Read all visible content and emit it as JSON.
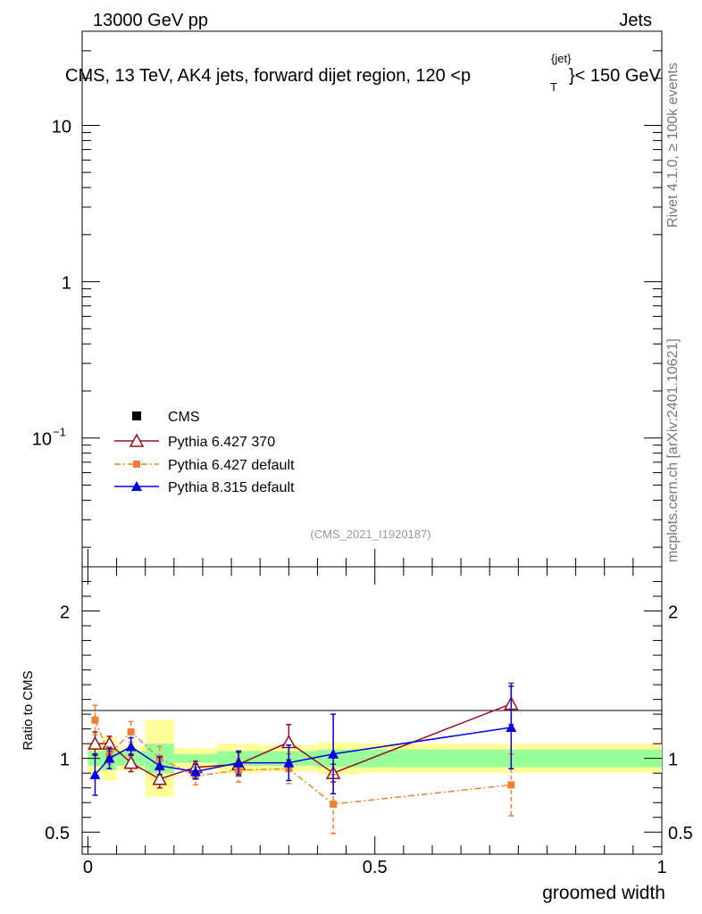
{
  "header": {
    "energy": "13000 GeV pp",
    "category": "Jets",
    "title_main": "CMS, 13 TeV, AK4 jets, forward dijet region, 120 <p",
    "title_sub": "T",
    "title_sup": "{jet}",
    "title_tail": "}< 150 GeV"
  },
  "side_labels": {
    "rivet": "Rivet 4.1.0, ≥ 100k events",
    "mcplots": "mcplots.cern.ch [arXiv:2401.10621]"
  },
  "analysis_tag": "(CMS_2021_I1920187)",
  "legend": [
    {
      "label": "CMS",
      "color": "#000000",
      "marker": "square-filled",
      "line": "none"
    },
    {
      "label": "Pythia 6.427 370",
      "color": "#990e1e",
      "marker": "triangle-open",
      "line": "solid"
    },
    {
      "label": "Pythia 6.427 default",
      "color": "#f08030",
      "marker": "square-filled",
      "line": "dashdot"
    },
    {
      "label": "Pythia 8.315 default",
      "color": "#0000dd",
      "marker": "triangle-filled",
      "line": "solid"
    }
  ],
  "chart_data": [
    {
      "type": "line",
      "panel": "main",
      "yscale": "log",
      "ylim": [
        0.015,
        40
      ],
      "xlim": [
        -0.01,
        1.0
      ],
      "y_ticks": [
        {
          "value": 10,
          "label": "10"
        },
        {
          "value": 1,
          "label": "1"
        },
        {
          "value": 0.1,
          "label": "10",
          "exp": "−1"
        }
      ],
      "series": []
    },
    {
      "type": "line",
      "panel": "ratio",
      "ylabel": "Ratio to CMS",
      "xlabel": "groomed width",
      "ylim": [
        0.35,
        2.3
      ],
      "xlim": [
        -0.01,
        1.0
      ],
      "x_ticks": [
        {
          "value": 0,
          "label": "0"
        },
        {
          "value": 0.5,
          "label": "0.5"
        },
        {
          "value": 1,
          "label": "1"
        }
      ],
      "y_ticks": [
        {
          "value": 2,
          "label": "2"
        },
        {
          "value": 1,
          "label": "1"
        },
        {
          "value": 0.5,
          "label": "0.5"
        }
      ],
      "bins": [
        {
          "lo": 0.0,
          "hi": 0.025,
          "stat": 0.05,
          "tot": 0.1
        },
        {
          "lo": 0.025,
          "hi": 0.05,
          "stat": 0.08,
          "tot": 0.15
        },
        {
          "lo": 0.05,
          "hi": 0.1,
          "stat": 0.05,
          "tot": 0.08
        },
        {
          "lo": 0.1,
          "hi": 0.15,
          "stat": 0.1,
          "tot": 0.26
        },
        {
          "lo": 0.15,
          "hi": 0.225,
          "stat": 0.03,
          "tot": 0.07
        },
        {
          "lo": 0.225,
          "hi": 0.3,
          "stat": 0.05,
          "tot": 0.1
        },
        {
          "lo": 0.3,
          "hi": 0.4,
          "stat": 0.05,
          "tot": 0.09
        },
        {
          "lo": 0.4,
          "hi": 0.475,
          "stat": 0.06,
          "tot": 0.11
        },
        {
          "lo": 0.475,
          "hi": 1.0,
          "stat": 0.06,
          "tot": 0.1
        }
      ],
      "series": [
        {
          "name": "Pythia 6.427 370",
          "x": [
            0.0125,
            0.0375,
            0.075,
            0.125,
            0.1875,
            0.2625,
            0.35,
            0.4275,
            0.7375
          ],
          "y": [
            1.1,
            1.1,
            0.97,
            0.86,
            0.94,
            0.96,
            1.11,
            0.9,
            1.37
          ],
          "err": [
            0.08,
            0.05,
            0.06,
            0.06,
            0.04,
            0.08,
            0.12,
            0.06,
            0.14
          ]
        },
        {
          "name": "Pythia 6.427 default",
          "x": [
            0.0125,
            0.0375,
            0.075,
            0.125,
            0.1875,
            0.2625,
            0.35,
            0.4275,
            0.7375
          ],
          "y": [
            1.26,
            1.02,
            1.18,
            1.0,
            0.88,
            0.92,
            0.93,
            0.69,
            0.82
          ],
          "err": [
            0.1,
            0.06,
            0.07,
            0.08,
            0.06,
            0.08,
            0.1,
            0.2,
            0.21
          ]
        },
        {
          "name": "Pythia 8.315 default",
          "x": [
            0.0125,
            0.0375,
            0.075,
            0.125,
            0.1875,
            0.2625,
            0.35,
            0.4275,
            0.7375
          ],
          "y": [
            0.89,
            1.0,
            1.08,
            0.95,
            0.91,
            0.97,
            0.97,
            1.03,
            1.21
          ],
          "err": [
            0.14,
            0.07,
            0.06,
            0.06,
            0.05,
            0.08,
            0.12,
            0.27,
            0.28
          ]
        }
      ]
    }
  ]
}
